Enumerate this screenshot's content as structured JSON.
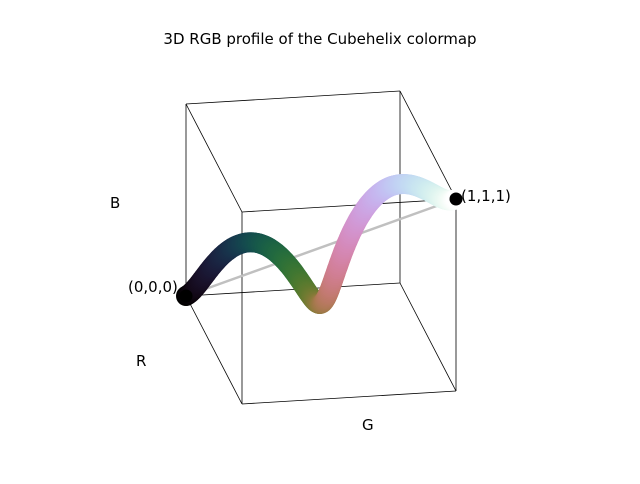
{
  "chart_data": {
    "type": "scatter",
    "title": "3D RGB profile of the Cubehelix colormap",
    "axes": {
      "x": "R",
      "y": "G",
      "z": "B"
    },
    "xlim": [
      0,
      1
    ],
    "ylim": [
      0,
      1
    ],
    "zlim": [
      0,
      1
    ],
    "grid": false,
    "colormap": "cubehelix",
    "series": [
      {
        "t": [
          0.0,
          0.05,
          0.1,
          0.15,
          0.2,
          0.25,
          0.3,
          0.35,
          0.4,
          0.45,
          0.5,
          0.55,
          0.6,
          0.65,
          0.7,
          0.75,
          0.8,
          0.85,
          0.9,
          0.95,
          1.0
        ]
      }
    ],
    "reference_line": {
      "from": [
        0,
        0,
        0
      ],
      "to": [
        1,
        1,
        1
      ],
      "color": "#c0c0c0"
    },
    "endpoint_labels": [
      {
        "point": [
          0,
          0,
          0
        ],
        "label": "(0,0,0)"
      },
      {
        "point": [
          1,
          1,
          1
        ],
        "label": "(1,1,1)"
      }
    ]
  }
}
